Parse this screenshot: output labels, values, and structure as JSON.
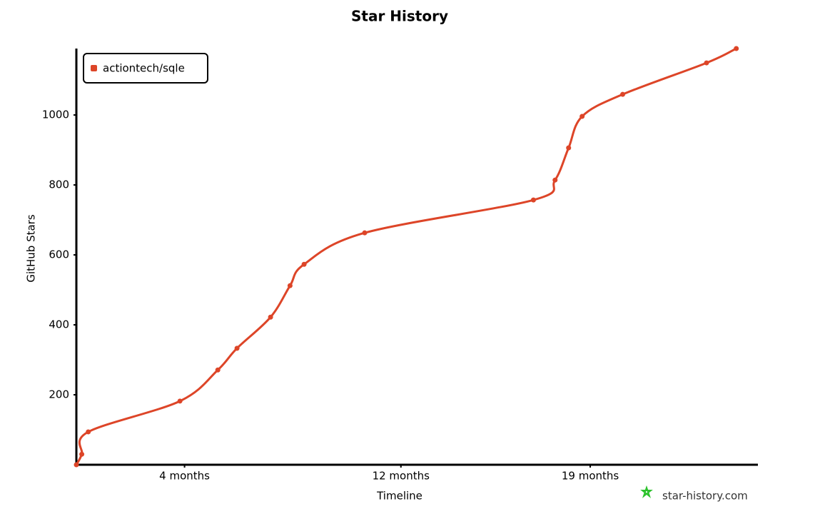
{
  "chart_data": {
    "type": "line",
    "title": "Star History",
    "x_label": "Timeline",
    "y_label": "GitHub Stars",
    "watermark": "star-history.com",
    "x": [
      0,
      0.2,
      0.44,
      3.83,
      5.23,
      5.94,
      7.18,
      7.9,
      8.42,
      10.66,
      16.9,
      17.7,
      18.2,
      18.7,
      20.2,
      23.3,
      24.4
    ],
    "series": [
      {
        "name": "actiontech/sqle",
        "color": "#dd4528",
        "values": [
          0,
          30,
          94,
          182,
          271,
          333,
          422,
          512,
          573,
          663,
          757,
          814,
          906,
          996,
          1059,
          1149,
          1190
        ]
      }
    ],
    "xlim": [
      0,
      25.2
    ],
    "xticks": [
      {
        "value": 4,
        "label": "4 months"
      },
      {
        "value": 12,
        "label": "12 months"
      },
      {
        "value": 19,
        "label": "19 months"
      }
    ],
    "ylim": [
      0,
      1190
    ],
    "yticks": [
      200,
      400,
      600,
      800,
      1000
    ],
    "legend": "top-left"
  }
}
